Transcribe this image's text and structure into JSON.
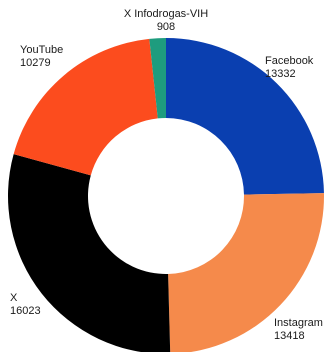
{
  "chart_data": {
    "type": "pie",
    "donut": true,
    "legend": "none",
    "slices": [
      {
        "label": "Facebook",
        "value": 13332,
        "value_text": "13332",
        "color": "#0a3fb0"
      },
      {
        "label": "Instagram",
        "value": 13418,
        "value_text": "13418",
        "color": "#f58a4b"
      },
      {
        "label": "X",
        "value": 16023,
        "value_text": "16023",
        "color": "#000000"
      },
      {
        "label": "YouTube",
        "value": 10279,
        "value_text": "10279",
        "color": "#fc4c1e"
      },
      {
        "label": "X Infodrogas-VIH",
        "value": 908,
        "value_text": "908",
        "color": "#1e9c7e"
      }
    ]
  }
}
